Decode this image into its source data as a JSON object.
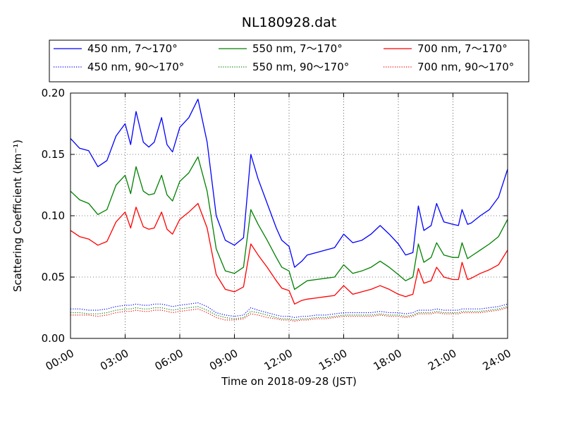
{
  "chart_data": {
    "type": "line",
    "title": "NL180928.dat",
    "xlabel": "Time on 2018-09-28 (JST)",
    "ylabel": "Scattering Coefficient (km⁻¹)",
    "xlim": [
      0,
      24
    ],
    "ylim": [
      0.0,
      0.2
    ],
    "grid": true,
    "legend_position": "top, above plot (3 columns)",
    "x_ticks": [
      "00:00",
      "03:00",
      "06:00",
      "09:00",
      "12:00",
      "15:00",
      "18:00",
      "21:00",
      "24:00"
    ],
    "y_ticks": [
      "0.00",
      "0.05",
      "0.10",
      "0.15",
      "0.20"
    ],
    "x": [
      0,
      0.5,
      1,
      1.5,
      2,
      2.5,
      3,
      3.3,
      3.6,
      4,
      4.3,
      4.6,
      5,
      5.3,
      5.6,
      6,
      6.5,
      7,
      7.5,
      8,
      8.5,
      9,
      9.5,
      9.9,
      10.3,
      10.8,
      11.3,
      11.6,
      12,
      12.3,
      12.7,
      13,
      13.5,
      14,
      14.5,
      15,
      15.5,
      16,
      16.5,
      17,
      17.5,
      18,
      18.4,
      18.8,
      19.1,
      19.4,
      19.8,
      20.1,
      20.5,
      21,
      21.3,
      21.5,
      21.8,
      22,
      22.5,
      23,
      23.5,
      24
    ],
    "series": [
      {
        "name": "450 nm, 7～170°",
        "color": "#0000ff",
        "style": "solid",
        "values": [
          0.163,
          0.155,
          0.153,
          0.14,
          0.145,
          0.165,
          0.175,
          0.158,
          0.185,
          0.16,
          0.156,
          0.16,
          0.18,
          0.158,
          0.152,
          0.172,
          0.18,
          0.195,
          0.16,
          0.1,
          0.08,
          0.076,
          0.082,
          0.15,
          0.13,
          0.11,
          0.09,
          0.08,
          0.075,
          0.058,
          0.063,
          0.068,
          0.07,
          0.072,
          0.074,
          0.085,
          0.078,
          0.08,
          0.085,
          0.092,
          0.085,
          0.077,
          0.068,
          0.07,
          0.108,
          0.088,
          0.092,
          0.11,
          0.095,
          0.093,
          0.092,
          0.105,
          0.093,
          0.094,
          0.1,
          0.105,
          0.115,
          0.138
        ]
      },
      {
        "name": "450 nm, 90～170°",
        "color": "#0000ff",
        "style": "dotted",
        "values": [
          0.024,
          0.024,
          0.023,
          0.023,
          0.024,
          0.026,
          0.027,
          0.027,
          0.028,
          0.027,
          0.027,
          0.028,
          0.028,
          0.027,
          0.026,
          0.027,
          0.028,
          0.029,
          0.026,
          0.021,
          0.019,
          0.018,
          0.019,
          0.025,
          0.023,
          0.021,
          0.019,
          0.018,
          0.018,
          0.017,
          0.018,
          0.018,
          0.019,
          0.019,
          0.02,
          0.021,
          0.021,
          0.021,
          0.021,
          0.022,
          0.021,
          0.021,
          0.02,
          0.021,
          0.023,
          0.023,
          0.023,
          0.024,
          0.023,
          0.023,
          0.023,
          0.024,
          0.024,
          0.024,
          0.024,
          0.025,
          0.026,
          0.028
        ]
      },
      {
        "name": "550 nm, 7～170°",
        "color": "#008000",
        "style": "solid",
        "values": [
          0.12,
          0.113,
          0.11,
          0.101,
          0.105,
          0.125,
          0.133,
          0.118,
          0.14,
          0.12,
          0.117,
          0.118,
          0.133,
          0.117,
          0.112,
          0.128,
          0.135,
          0.148,
          0.12,
          0.073,
          0.055,
          0.053,
          0.058,
          0.105,
          0.093,
          0.08,
          0.066,
          0.058,
          0.055,
          0.04,
          0.044,
          0.047,
          0.048,
          0.049,
          0.05,
          0.06,
          0.053,
          0.055,
          0.058,
          0.063,
          0.058,
          0.052,
          0.047,
          0.05,
          0.077,
          0.062,
          0.066,
          0.078,
          0.068,
          0.066,
          0.066,
          0.078,
          0.065,
          0.067,
          0.072,
          0.077,
          0.083,
          0.097
        ]
      },
      {
        "name": "550 nm, 90～170°",
        "color": "#008000",
        "style": "dotted",
        "values": [
          0.021,
          0.021,
          0.02,
          0.02,
          0.021,
          0.023,
          0.024,
          0.024,
          0.025,
          0.024,
          0.024,
          0.025,
          0.025,
          0.024,
          0.023,
          0.024,
          0.025,
          0.026,
          0.023,
          0.019,
          0.017,
          0.016,
          0.017,
          0.022,
          0.021,
          0.019,
          0.017,
          0.016,
          0.016,
          0.015,
          0.016,
          0.016,
          0.017,
          0.017,
          0.018,
          0.019,
          0.019,
          0.019,
          0.019,
          0.02,
          0.019,
          0.019,
          0.018,
          0.019,
          0.021,
          0.021,
          0.021,
          0.022,
          0.021,
          0.021,
          0.021,
          0.022,
          0.022,
          0.022,
          0.022,
          0.023,
          0.024,
          0.026
        ]
      },
      {
        "name": "700 nm, 7～170°",
        "color": "#ff0000",
        "style": "solid",
        "values": [
          0.088,
          0.083,
          0.081,
          0.076,
          0.079,
          0.095,
          0.103,
          0.09,
          0.107,
          0.091,
          0.089,
          0.09,
          0.103,
          0.089,
          0.085,
          0.097,
          0.103,
          0.11,
          0.09,
          0.052,
          0.04,
          0.038,
          0.042,
          0.077,
          0.068,
          0.058,
          0.047,
          0.041,
          0.039,
          0.028,
          0.031,
          0.032,
          0.033,
          0.034,
          0.035,
          0.043,
          0.036,
          0.038,
          0.04,
          0.043,
          0.04,
          0.036,
          0.034,
          0.036,
          0.057,
          0.045,
          0.047,
          0.058,
          0.05,
          0.048,
          0.048,
          0.062,
          0.048,
          0.049,
          0.053,
          0.056,
          0.06,
          0.072
        ]
      },
      {
        "name": "700 nm, 90～170°",
        "color": "#ff0000",
        "style": "dotted",
        "values": [
          0.019,
          0.019,
          0.019,
          0.018,
          0.019,
          0.021,
          0.022,
          0.022,
          0.023,
          0.022,
          0.022,
          0.023,
          0.023,
          0.022,
          0.021,
          0.022,
          0.023,
          0.024,
          0.021,
          0.017,
          0.015,
          0.015,
          0.016,
          0.02,
          0.019,
          0.017,
          0.016,
          0.015,
          0.015,
          0.014,
          0.015,
          0.015,
          0.016,
          0.016,
          0.017,
          0.018,
          0.018,
          0.018,
          0.018,
          0.019,
          0.018,
          0.018,
          0.017,
          0.018,
          0.02,
          0.02,
          0.02,
          0.021,
          0.02,
          0.02,
          0.02,
          0.021,
          0.021,
          0.021,
          0.021,
          0.022,
          0.023,
          0.025
        ]
      }
    ]
  }
}
